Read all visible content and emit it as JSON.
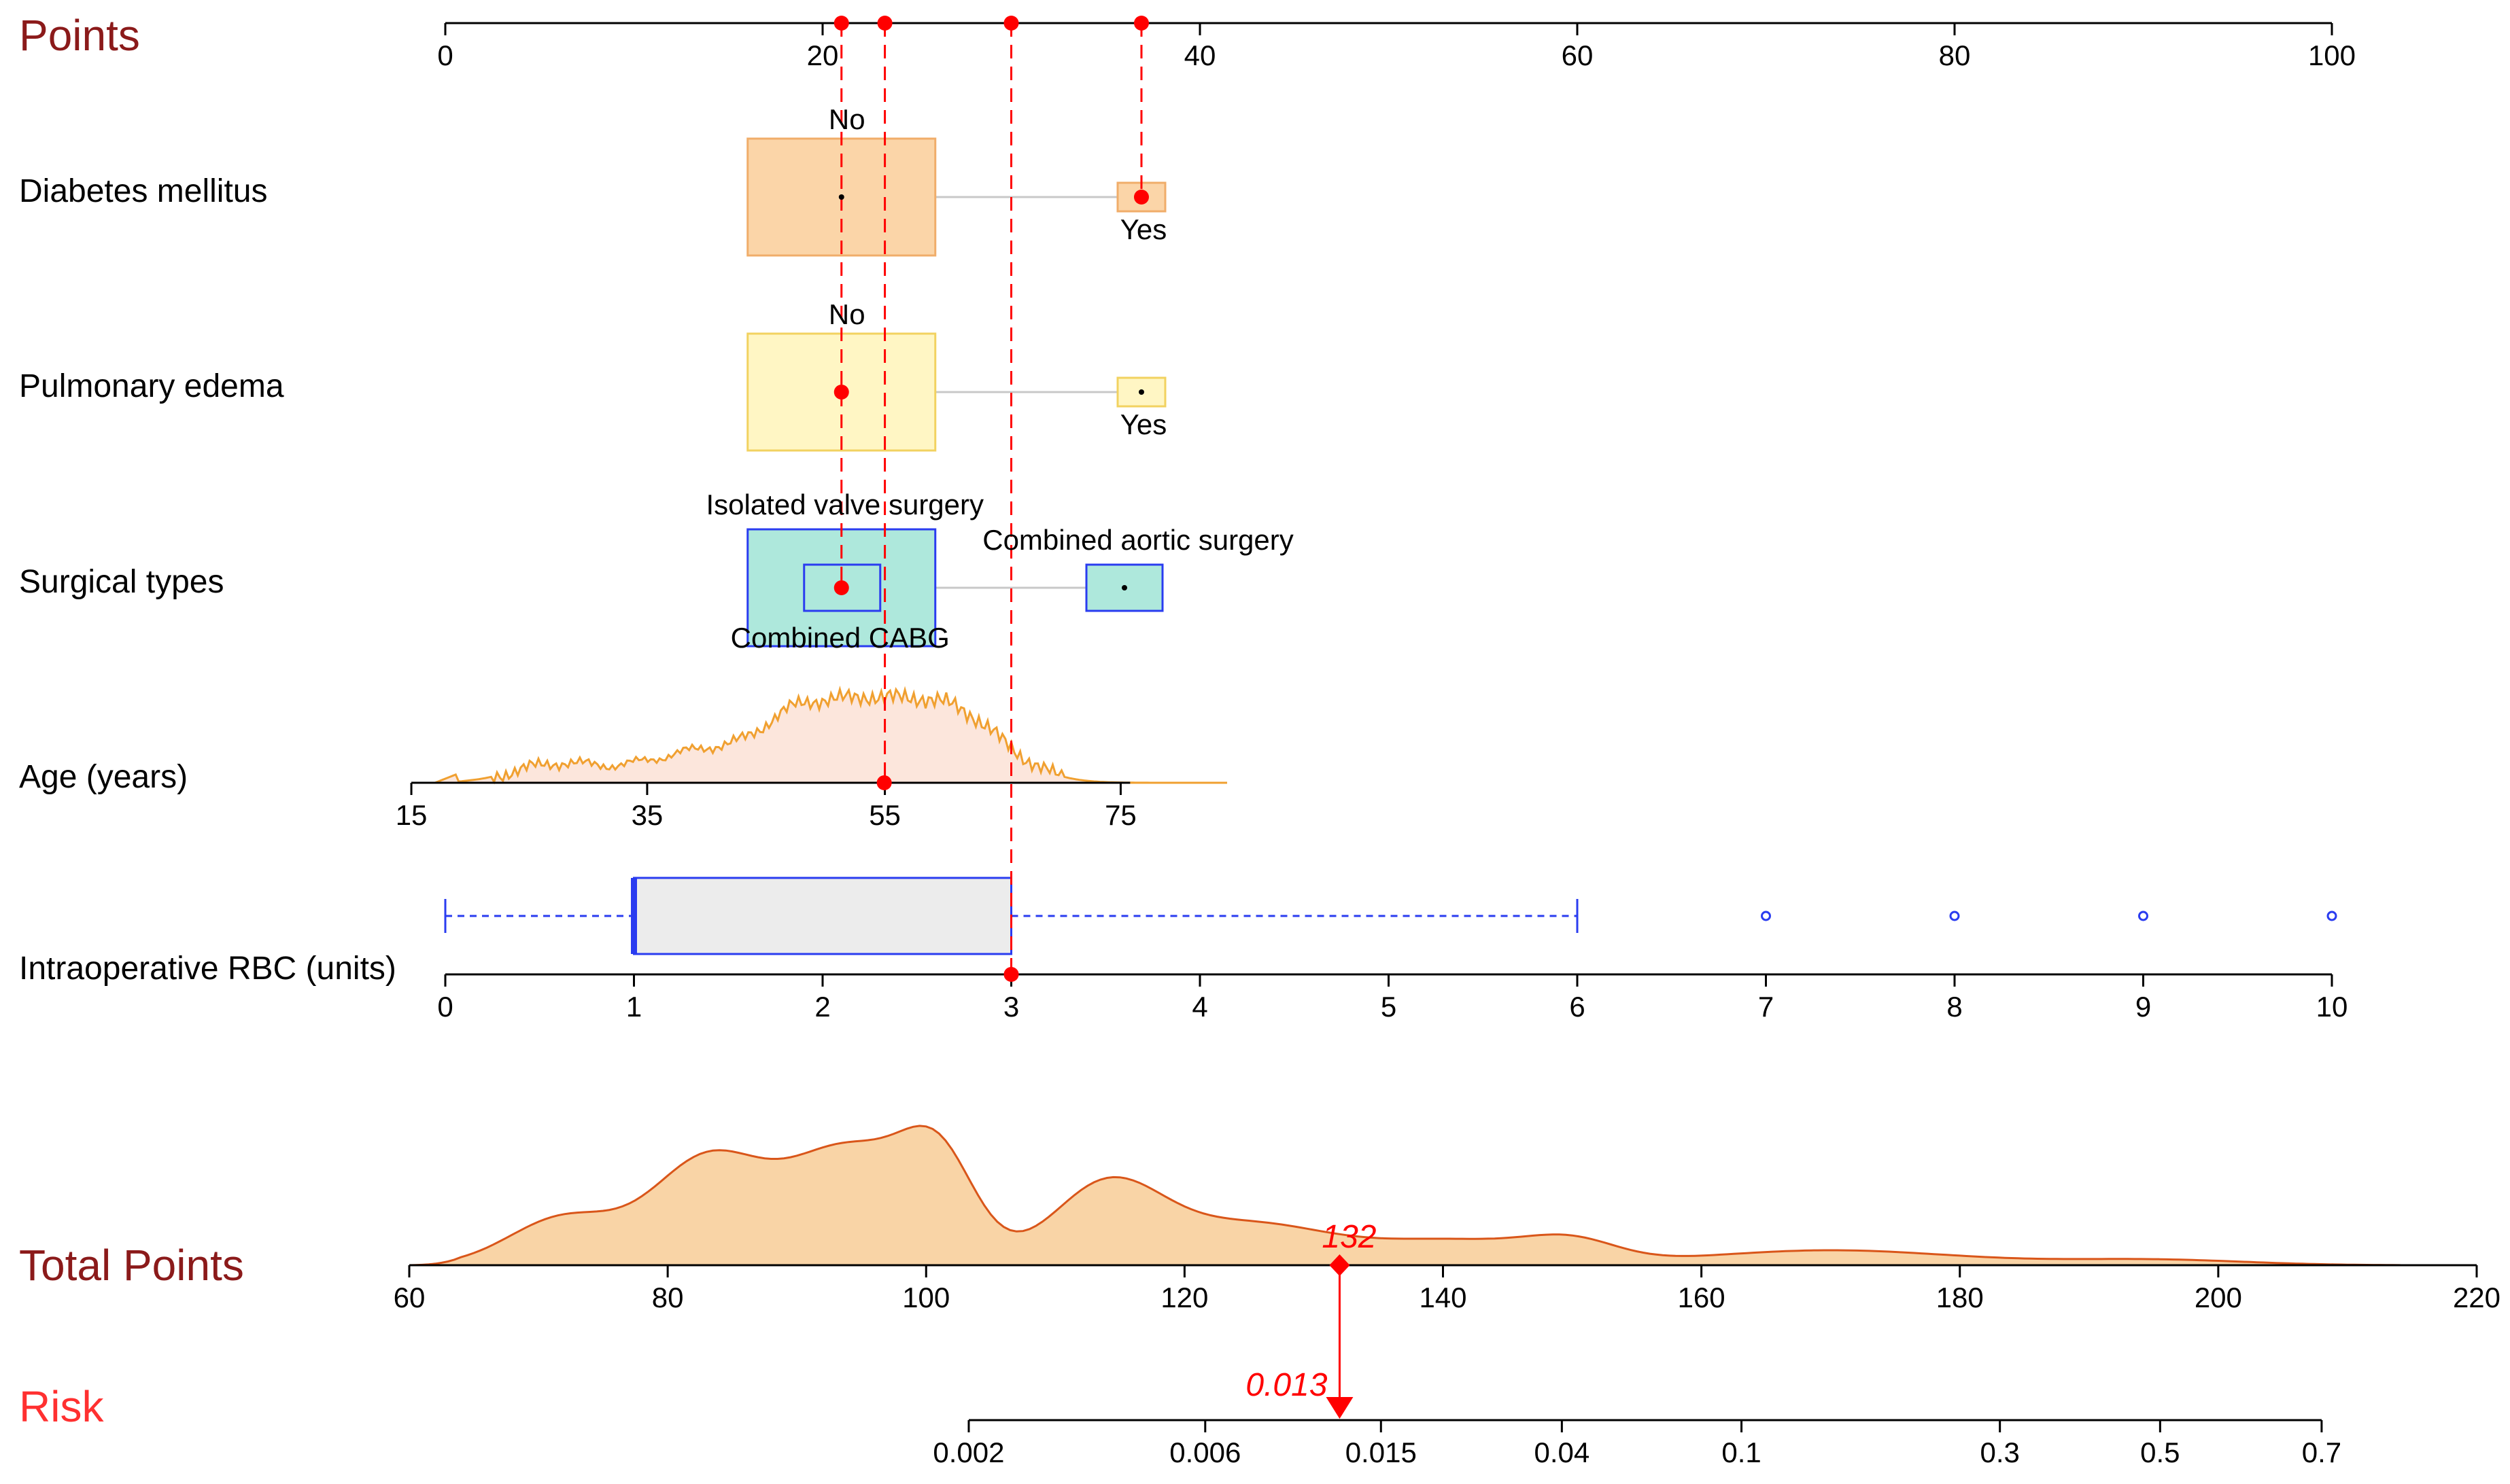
{
  "chart_data": {
    "type": "nomogram",
    "points_axis": {
      "label": "Points",
      "min": 0,
      "max": 100,
      "ticks": [
        0,
        20,
        40,
        60,
        80,
        100
      ]
    },
    "variables": [
      {
        "name": "Diabetes mellitus",
        "kind": "categorical",
        "levels": [
          {
            "label": "No",
            "points": 21,
            "proportion": 0.93
          },
          {
            "label": "Yes",
            "points": 36.9,
            "proportion": 0.07
          }
        ],
        "selected": "Yes",
        "fill": "#fbd5a8",
        "stroke": "#f0ad6a"
      },
      {
        "name": "Pulmonary edema",
        "kind": "categorical",
        "levels": [
          {
            "label": "No",
            "points": 21,
            "proportion": 0.94
          },
          {
            "label": "Yes",
            "points": 36.9,
            "proportion": 0.06
          }
        ],
        "selected": "No",
        "fill": "#fff6c4",
        "stroke": "#f2d260"
      },
      {
        "name": "Surgical types",
        "kind": "categorical",
        "levels": [
          {
            "label": "Isolated valve surgery",
            "points": 21,
            "proportion": 0.6
          },
          {
            "label": "Combined CABG",
            "points": 21,
            "proportion": 0.25
          },
          {
            "label": "Combined aortic surgery",
            "points": 36,
            "proportion": 0.15
          }
        ],
        "selected": "Combined CABG",
        "fill": "#aee8dc",
        "stroke": "#2a3cf0"
      },
      {
        "name": "Age (years)",
        "kind": "continuous",
        "ticks": [
          15,
          35,
          55,
          75
        ],
        "points_at_ticks": [
          -1.8,
          10.7,
          23.3,
          35.8
        ],
        "range": [
          17,
          83
        ],
        "selected_value": 55,
        "fill": "#fce6dc",
        "stroke": "#f0a030"
      },
      {
        "name": "Intraoperative RBC (units)",
        "kind": "continuous",
        "ticks": [
          0,
          1,
          2,
          3,
          4,
          5,
          6,
          7,
          8,
          9,
          10
        ],
        "points_at_ticks": [
          0,
          10,
          20,
          30,
          40,
          50,
          60,
          70,
          80,
          90,
          100
        ],
        "boxplot": {
          "whisker_low": 0,
          "q1": 1,
          "median": 1,
          "q3": 3,
          "whisker_high": 6,
          "outliers": [
            7,
            8,
            9,
            10
          ]
        },
        "selected_value": 3,
        "fill": "#ececec",
        "stroke": "#2a3cf0"
      }
    ],
    "selected_points": [
      21,
      23.3,
      30,
      36.9
    ],
    "total_points_axis": {
      "label": "Total Points",
      "min": 60,
      "max": 220,
      "ticks": [
        60,
        80,
        100,
        120,
        140,
        160,
        180,
        200,
        220
      ]
    },
    "total_points_selected": 132,
    "risk_axis": {
      "label": "Risk",
      "tick_labels": [
        "0.002",
        "0.006",
        "0.015",
        "0.04",
        "0.1",
        "0.3",
        "0.5",
        "0.7"
      ],
      "tick_total_points": [
        103.3,
        121.6,
        135.2,
        149.2,
        163.1,
        183.1,
        195.5,
        208.0
      ]
    },
    "risk_selected": "0.013",
    "colors": {
      "title": "#8b1a1a",
      "risk_title": "#ff3030",
      "marker": "#ff0000",
      "guide": "#ff0000",
      "total_fill": "#f9d4a6",
      "total_stroke": "#d9561a"
    }
  }
}
